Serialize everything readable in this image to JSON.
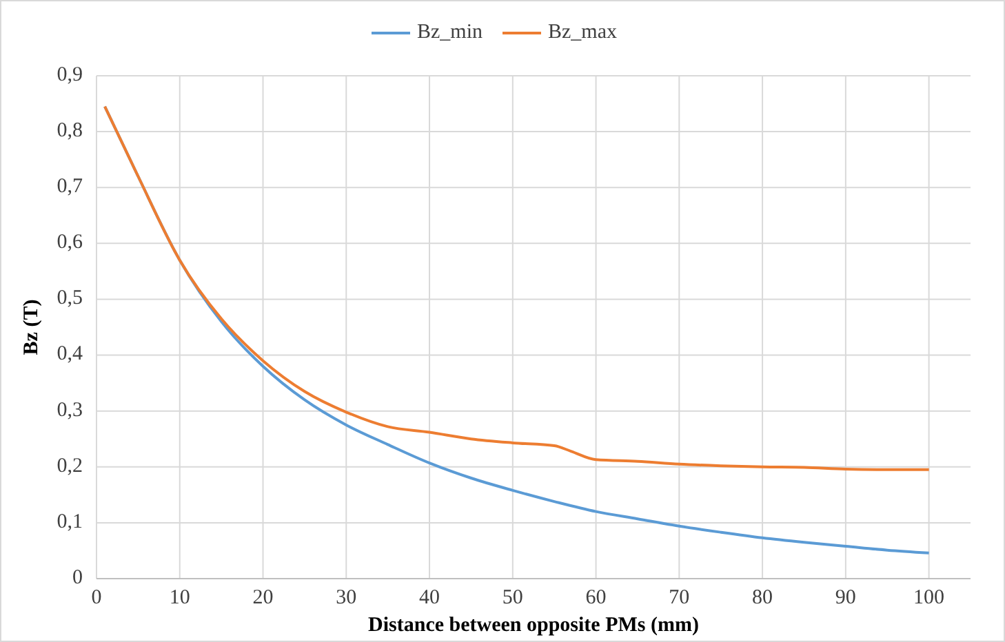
{
  "chart_data": {
    "type": "line",
    "xlabel": "Distance between opposite PMs (mm)",
    "ylabel": "Bz (T)",
    "xlim": [
      0,
      105
    ],
    "xticks": [
      0,
      10,
      20,
      30,
      40,
      50,
      60,
      70,
      80,
      90,
      100
    ],
    "ylim": [
      0,
      0.9
    ],
    "yticks": [
      0,
      {
        "value": 0.1,
        "label": "0,1"
      },
      {
        "value": 0.2,
        "label": "0,2"
      },
      {
        "value": 0.3,
        "label": "0,3"
      },
      {
        "value": 0.4,
        "label": "0,4"
      },
      {
        "value": 0.5,
        "label": "0,5"
      },
      {
        "value": 0.6,
        "label": "0,6"
      },
      {
        "value": 0.7,
        "label": "0,7"
      },
      {
        "value": 0.8,
        "label": "0,8"
      },
      {
        "value": 0.9,
        "label": "0,9"
      }
    ],
    "grid": true,
    "legend": "top",
    "marker": "none",
    "line_style": "solid",
    "series": [
      {
        "name": "Bz_min",
        "color": "#5b9bd5",
        "x": [
          1,
          5,
          10,
          15,
          20,
          25,
          30,
          35,
          40,
          45,
          50,
          55,
          60,
          65,
          70,
          75,
          80,
          85,
          90,
          95,
          100
        ],
        "values": [
          0.845,
          0.72,
          0.57,
          0.46,
          0.38,
          0.32,
          0.275,
          0.24,
          0.207,
          0.18,
          0.158,
          0.138,
          0.12,
          0.107,
          0.094,
          0.083,
          0.073,
          0.065,
          0.058,
          0.051,
          0.046
        ]
      },
      {
        "name": "Bz_max",
        "color": "#ed7d31",
        "x": [
          1,
          5,
          10,
          15,
          20,
          25,
          30,
          35,
          40,
          45,
          50,
          55,
          57,
          60,
          65,
          70,
          75,
          80,
          85,
          90,
          95,
          100
        ],
        "values": [
          0.845,
          0.72,
          0.57,
          0.465,
          0.39,
          0.335,
          0.298,
          0.272,
          0.262,
          0.25,
          0.243,
          0.238,
          0.228,
          0.213,
          0.21,
          0.205,
          0.202,
          0.2,
          0.199,
          0.196,
          0.195,
          0.195
        ]
      }
    ]
  }
}
